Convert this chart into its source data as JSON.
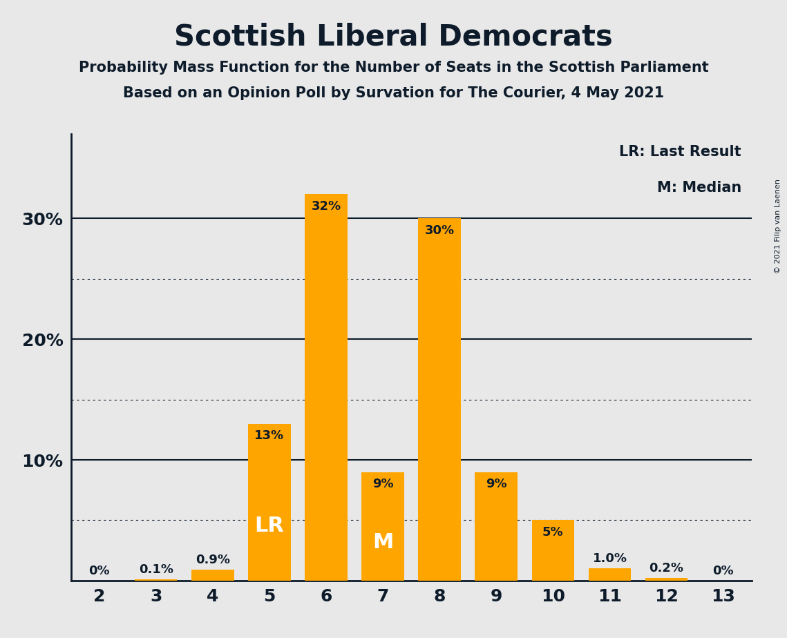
{
  "title": "Scottish Liberal Democrats",
  "subtitle1": "Probability Mass Function for the Number of Seats in the Scottish Parliament",
  "subtitle2": "Based on an Opinion Poll by Survation for The Courier, 4 May 2021",
  "copyright": "© 2021 Filip van Laenen",
  "categories": [
    2,
    3,
    4,
    5,
    6,
    7,
    8,
    9,
    10,
    11,
    12,
    13
  ],
  "values": [
    0.0,
    0.1,
    0.9,
    13.0,
    32.0,
    9.0,
    30.0,
    9.0,
    5.0,
    1.0,
    0.2,
    0.0
  ],
  "labels": [
    "0%",
    "0.1%",
    "0.9%",
    "13%",
    "32%",
    "9%",
    "30%",
    "9%",
    "5%",
    "1.0%",
    "0.2%",
    "0%"
  ],
  "bar_color": "#FFA500",
  "label_color_dark": "#0d1b2a",
  "label_color_white": "#ffffff",
  "background_color": "#e8e8e8",
  "axis_color": "#0d1b2a",
  "LR_bar": 5,
  "M_bar": 7,
  "legend_text1": "LR: Last Result",
  "legend_text2": "M: Median",
  "ylim": [
    0,
    37
  ],
  "xlim": [
    1.5,
    13.5
  ],
  "bar_width": 0.75
}
